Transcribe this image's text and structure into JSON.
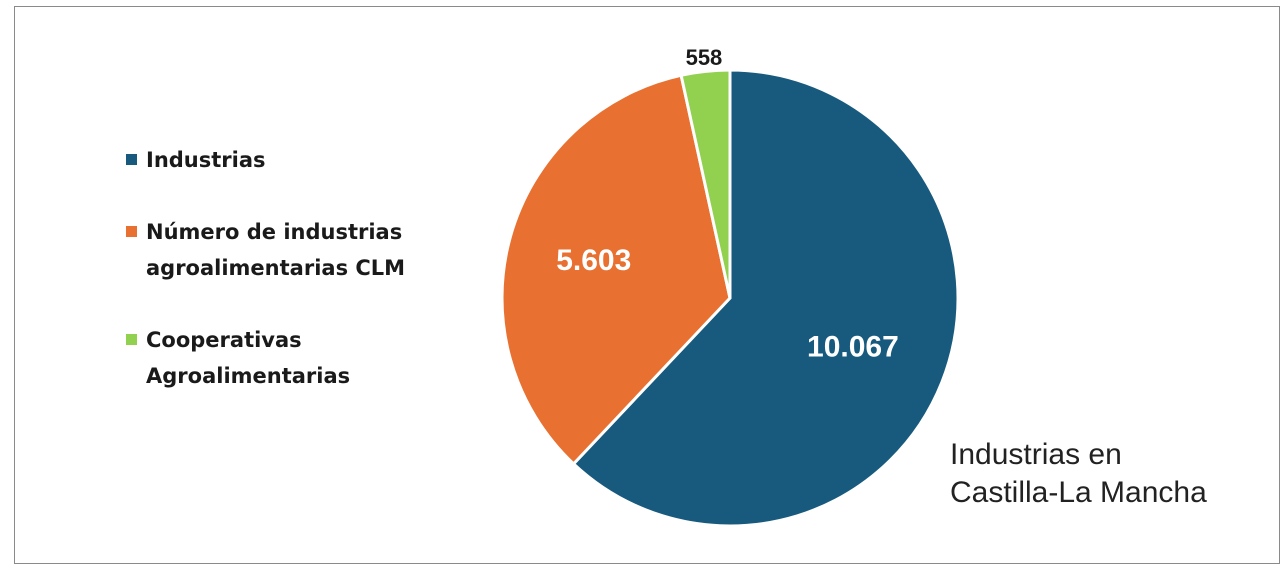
{
  "chart_data": {
    "type": "pie",
    "caption_lines": [
      "Industrias en",
      "Castilla-La Mancha"
    ],
    "legend_position": "left",
    "slices": [
      {
        "label_lines": [
          "Industrias"
        ],
        "value": 10067,
        "display": "10.067",
        "color": "#175A7D",
        "label_color": "#ffffff"
      },
      {
        "label_lines": [
          "Número de industrias",
          "agroalimentarias CLM"
        ],
        "value": 5603,
        "display": "5.603",
        "color": "#E87030",
        "label_color": "#ffffff"
      },
      {
        "label_lines": [
          "Cooperativas",
          "Agroalimentarias"
        ],
        "value": 558,
        "display": "558",
        "color": "#92D050",
        "label_color": "#1a1a1a"
      }
    ]
  }
}
